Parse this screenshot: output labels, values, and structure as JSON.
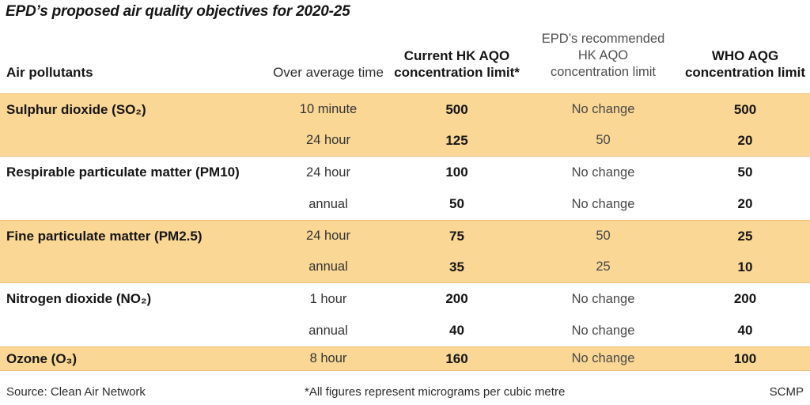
{
  "chart_data": {
    "type": "table",
    "title": "EPD’s proposed air quality objectives for 2020-25",
    "columns": [
      "Air pollutants",
      "Over average time",
      "Current HK AQO concentration limit*",
      "EPD’s recommended HK AQO concentration limit",
      "WHO AQG concentration limit"
    ],
    "bands": [
      {
        "pollutant": "Sulphur dioxide (SO₂)",
        "highlighted": true,
        "entries": [
          {
            "time": "10 minute",
            "current": "500",
            "recommended": "No change",
            "who": "500"
          },
          {
            "time": "24 hour",
            "current": "125",
            "recommended": "50",
            "who": "20"
          }
        ]
      },
      {
        "pollutant": "Respirable particulate matter (PM10)",
        "highlighted": false,
        "entries": [
          {
            "time": "24 hour",
            "current": "100",
            "recommended": "No change",
            "who": "50"
          },
          {
            "time": "annual",
            "current": "50",
            "recommended": "No change",
            "who": "20"
          }
        ]
      },
      {
        "pollutant": "Fine particulate matter (PM2.5)",
        "highlighted": true,
        "entries": [
          {
            "time": "24 hour",
            "current": "75",
            "recommended": "50",
            "who": "25"
          },
          {
            "time": "annual",
            "current": "35",
            "recommended": "25",
            "who": "10"
          }
        ]
      },
      {
        "pollutant": "Nitrogen dioxide (NO₂)",
        "highlighted": false,
        "entries": [
          {
            "time": "1 hour",
            "current": "200",
            "recommended": "No change",
            "who": "200"
          },
          {
            "time": "annual",
            "current": "40",
            "recommended": "No change",
            "who": "40"
          }
        ]
      },
      {
        "pollutant": "Ozone (O₃)",
        "highlighted": true,
        "entries": [
          {
            "time": "8 hour",
            "current": "160",
            "recommended": "No change",
            "who": "100"
          }
        ]
      }
    ],
    "source": "Source: Clean Air Network",
    "footnote": "*All figures represent micrograms per cubic metre",
    "credit": "SCMP",
    "units": "micrograms per cubic metre",
    "layout": {
      "grid": "off",
      "legend": "none",
      "highlight_color": "#FAD795"
    }
  },
  "header": {
    "pollutants": "Air pollutants",
    "time": "Over average time",
    "current": {
      "l1": "Current HK AQO",
      "l2": "concentration limit*"
    },
    "recommended": {
      "l1": "EPD’s recommended",
      "l2": "HK AQO",
      "l3": "concentration limit"
    },
    "who": {
      "l1": "WHO AQG",
      "l2": "concentration limit"
    }
  },
  "colors": {
    "highlight": "#FAD795",
    "highlight_edge": "#EFC179",
    "text_dark": "#151515",
    "text_gray": "#474747",
    "background": "#FFFFFF"
  }
}
